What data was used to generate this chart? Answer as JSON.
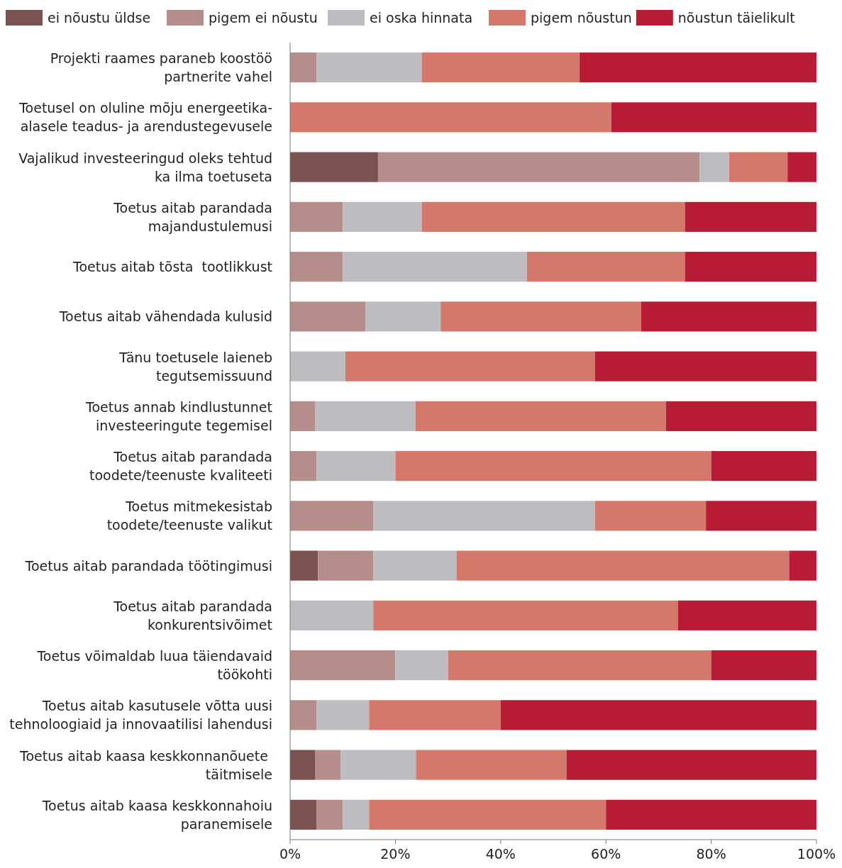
{
  "chart_data": {
    "type": "bar",
    "orientation": "horizontal",
    "stacked": true,
    "legend": "top",
    "grid": false,
    "categories": [
      "Projekti raames paraneb koostöö\npartnerite vahel",
      "Toetusel on oluline mõju energeetika-\nalasele teadus- ja arendustegevusele",
      "Vajalikud investeeringud oleks tehtud\nka ilma toetuseta",
      "Toetus aitab parandada\nmajandustulemusi",
      "Toetus aitab tõsta  tootlikkust",
      "Toetus aitab vähendada kulusid",
      "Tänu toetusele laieneb\ntegutsemissuund",
      "Toetus annab kindlustunnet\ninvesteeringute tegemisel",
      "Toetus aitab parandada\ntoodete/teenuste kvaliteeti",
      "Toetus mitmekesistab\ntoodete/teenuste valikut",
      "Toetus aitab parandada töötingimusi",
      "Toetus aitab parandada\nkonkurentsivõimet",
      "Toetus võimaldab luua täiendavaid\ntöökohti",
      "Toetus aitab kasutusele võtta uusi\ntehnoloogiaid ja innovaatilisi lahendusi",
      "Toetus aitab kaasa keskkonnanõuete \ntäitmisele",
      "Toetus aitab kaasa keskkonnahoiu\nparanemisele"
    ],
    "series": [
      {
        "name": "ei nõustu üldse",
        "color": "#7a5250",
        "values": [
          0,
          0,
          16.7,
          0,
          0,
          0,
          0,
          0,
          0,
          0,
          5.3,
          0,
          0,
          0,
          4.8,
          5
        ]
      },
      {
        "name": "pigem ei nõustu",
        "color": "#b58e8c",
        "values": [
          5,
          0,
          61.1,
          10,
          10,
          14.3,
          0,
          4.8,
          5,
          15.8,
          10.5,
          0,
          20,
          5,
          4.8,
          5
        ]
      },
      {
        "name": "ei oska hinnata",
        "color": "#bdbdc1",
        "values": [
          20,
          0,
          5.6,
          15,
          35,
          14.3,
          10.5,
          19,
          15,
          42.1,
          15.8,
          15.8,
          10,
          10,
          14.3,
          5
        ]
      },
      {
        "name": "pigem nõustun",
        "color": "#d4786b",
        "values": [
          30,
          61,
          11.1,
          50,
          30,
          38.1,
          47.4,
          47.6,
          60,
          21.1,
          63.2,
          57.9,
          50,
          25,
          28.6,
          45
        ]
      },
      {
        "name": "nõustun täielikult",
        "color": "#b81c35",
        "values": [
          45,
          39,
          5.5,
          25,
          25,
          33.3,
          42.1,
          28.6,
          20,
          21,
          5.2,
          26.3,
          20,
          60,
          47.5,
          40
        ]
      }
    ],
    "xlim": [
      0,
      100
    ],
    "xticks": [
      {
        "value": 0,
        "label": "0%"
      },
      {
        "value": 20,
        "label": "20%"
      },
      {
        "value": 40,
        "label": "40%"
      },
      {
        "value": 60,
        "label": "60%"
      },
      {
        "value": 80,
        "label": "80%"
      },
      {
        "value": 100,
        "label": "100%"
      }
    ]
  }
}
